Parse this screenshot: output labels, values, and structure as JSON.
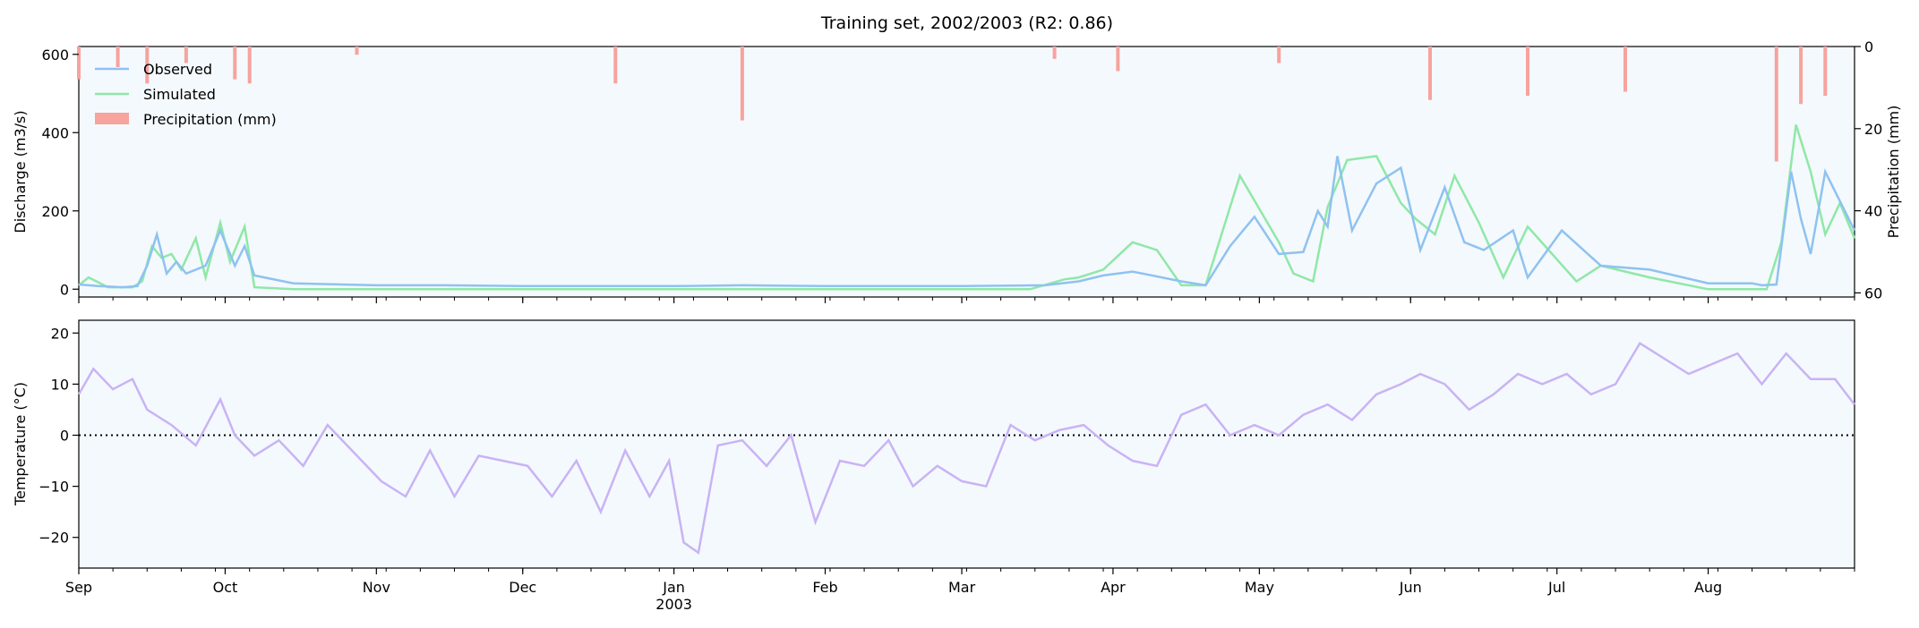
{
  "chart_data": [
    {
      "type": "line",
      "title": "Training set, 2002/2003 (R2: 0.86)",
      "ylabel": "Discharge (m3/s)",
      "y2label": "Precipitation (mm)",
      "ylim": [
        -20,
        620
      ],
      "y2lim": [
        0,
        61
      ],
      "y2_inverted": true,
      "yticks": [
        0,
        200,
        400,
        600
      ],
      "y2ticks": [
        0,
        20,
        40,
        60
      ],
      "legend_placement": "top-left",
      "grid": false,
      "colors": {
        "observed": "#8fc2f0",
        "simulated": "#8fe8a6",
        "precip": "#f7a39e",
        "background": "#f4f9fd"
      },
      "series": [
        {
          "name": "Observed",
          "x": [
            "2002-09-01",
            "2002-09-05",
            "2002-09-10",
            "2002-09-13",
            "2002-09-15",
            "2002-09-17",
            "2002-09-19",
            "2002-09-21",
            "2002-09-23",
            "2002-09-27",
            "2002-09-30",
            "2002-10-03",
            "2002-10-05",
            "2002-10-07",
            "2002-10-15",
            "2002-11-01",
            "2002-11-15",
            "2002-12-01",
            "2002-12-15",
            "2003-01-01",
            "2003-01-15",
            "2003-02-01",
            "2003-02-15",
            "2003-03-01",
            "2003-03-18",
            "2003-03-25",
            "2003-03-30",
            "2003-04-05",
            "2003-04-15",
            "2003-04-20",
            "2003-04-25",
            "2003-04-30",
            "2003-05-05",
            "2003-05-10",
            "2003-05-13",
            "2003-05-15",
            "2003-05-17",
            "2003-05-20",
            "2003-05-25",
            "2003-05-30",
            "2003-06-03",
            "2003-06-08",
            "2003-06-12",
            "2003-06-16",
            "2003-06-22",
            "2003-06-25",
            "2003-07-02",
            "2003-07-10",
            "2003-07-20",
            "2003-08-01",
            "2003-08-10",
            "2003-08-12",
            "2003-08-15",
            "2003-08-18",
            "2003-08-20",
            "2003-08-22",
            "2003-08-25",
            "2003-08-31"
          ],
          "values": [
            12,
            8,
            5,
            8,
            60,
            140,
            40,
            70,
            40,
            60,
            150,
            60,
            110,
            35,
            15,
            10,
            10,
            8,
            8,
            8,
            10,
            8,
            8,
            8,
            10,
            20,
            35,
            45,
            20,
            10,
            110,
            185,
            90,
            95,
            200,
            160,
            340,
            150,
            270,
            310,
            100,
            260,
            120,
            100,
            150,
            30,
            150,
            60,
            50,
            15,
            15,
            10,
            12,
            300,
            180,
            90,
            300,
            150
          ]
        },
        {
          "name": "Simulated",
          "x": [
            "2002-09-01",
            "2002-09-03",
            "2002-09-07",
            "2002-09-12",
            "2002-09-14",
            "2002-09-16",
            "2002-09-18",
            "2002-09-20",
            "2002-09-22",
            "2002-09-25",
            "2002-09-27",
            "2002-09-30",
            "2002-10-02",
            "2002-10-05",
            "2002-10-07",
            "2002-10-15",
            "2002-11-15",
            "2003-01-01",
            "2003-02-15",
            "2003-03-15",
            "2003-03-22",
            "2003-03-25",
            "2003-03-30",
            "2003-04-05",
            "2003-04-10",
            "2003-04-15",
            "2003-04-20",
            "2003-04-27",
            "2003-05-05",
            "2003-05-08",
            "2003-05-12",
            "2003-05-15",
            "2003-05-19",
            "2003-05-25",
            "2003-05-30",
            "2003-06-02",
            "2003-06-06",
            "2003-06-10",
            "2003-06-15",
            "2003-06-20",
            "2003-06-25",
            "2003-07-05",
            "2003-07-10",
            "2003-07-20",
            "2003-08-01",
            "2003-08-10",
            "2003-08-13",
            "2003-08-16",
            "2003-08-19",
            "2003-08-22",
            "2003-08-25",
            "2003-08-28",
            "2003-08-31"
          ],
          "values": [
            10,
            30,
            5,
            5,
            20,
            110,
            80,
            90,
            50,
            130,
            30,
            170,
            70,
            160,
            5,
            0,
            0,
            0,
            0,
            0,
            25,
            30,
            50,
            120,
            100,
            10,
            10,
            290,
            120,
            40,
            20,
            210,
            330,
            340,
            220,
            180,
            140,
            290,
            170,
            30,
            160,
            20,
            60,
            30,
            0,
            0,
            0,
            120,
            420,
            300,
            140,
            220,
            130
          ]
        }
      ],
      "precip_markers": [
        {
          "x": "2002-09-01",
          "value": 8
        },
        {
          "x": "2002-09-09",
          "value": 5
        },
        {
          "x": "2002-09-15",
          "value": 9
        },
        {
          "x": "2002-09-23",
          "value": 4
        },
        {
          "x": "2002-10-03",
          "value": 8
        },
        {
          "x": "2002-10-06",
          "value": 9
        },
        {
          "x": "2002-10-28",
          "value": 2
        },
        {
          "x": "2002-12-20",
          "value": 9
        },
        {
          "x": "2003-01-15",
          "value": 18
        },
        {
          "x": "2003-03-20",
          "value": 3
        },
        {
          "x": "2003-04-02",
          "value": 6
        },
        {
          "x": "2003-05-05",
          "value": 4
        },
        {
          "x": "2003-06-05",
          "value": 13
        },
        {
          "x": "2003-06-25",
          "value": 12
        },
        {
          "x": "2003-07-15",
          "value": 11
        },
        {
          "x": "2003-08-15",
          "value": 28
        },
        {
          "x": "2003-08-20",
          "value": 14
        },
        {
          "x": "2003-08-25",
          "value": 12
        }
      ],
      "legend": [
        {
          "label": "Observed",
          "kind": "line"
        },
        {
          "label": "Simulated",
          "kind": "line"
        },
        {
          "label": "Precipitation (mm)",
          "kind": "bar"
        }
      ]
    },
    {
      "type": "line",
      "ylabel": "Temperature (°C)",
      "ylim": [
        -26,
        22.5
      ],
      "yticks": [
        -20,
        -10,
        0,
        10,
        20
      ],
      "reference_line": {
        "y": 0,
        "style": "dotted"
      },
      "colors": {
        "temperature": "#c9b3f5",
        "background": "#f4f9fd"
      },
      "series": [
        {
          "name": "",
          "x": [
            "2002-09-01",
            "2002-09-04",
            "2002-09-08",
            "2002-09-12",
            "2002-09-15",
            "2002-09-20",
            "2002-09-25",
            "2002-09-30",
            "2002-10-03",
            "2002-10-07",
            "2002-10-12",
            "2002-10-17",
            "2002-10-22",
            "2002-10-27",
            "2002-11-02",
            "2002-11-07",
            "2002-11-12",
            "2002-11-17",
            "2002-11-22",
            "2002-11-27",
            "2002-12-02",
            "2002-12-07",
            "2002-12-12",
            "2002-12-17",
            "2002-12-22",
            "2002-12-27",
            "2002-12-31",
            "2003-01-03",
            "2003-01-06",
            "2003-01-10",
            "2003-01-15",
            "2003-01-20",
            "2003-01-25",
            "2003-01-30",
            "2003-02-04",
            "2003-02-09",
            "2003-02-14",
            "2003-02-19",
            "2003-02-24",
            "2003-03-01",
            "2003-03-06",
            "2003-03-11",
            "2003-03-16",
            "2003-03-21",
            "2003-03-26",
            "2003-03-31",
            "2003-04-05",
            "2003-04-10",
            "2003-04-15",
            "2003-04-20",
            "2003-04-25",
            "2003-04-30",
            "2003-05-05",
            "2003-05-10",
            "2003-05-15",
            "2003-05-20",
            "2003-05-25",
            "2003-05-30",
            "2003-06-03",
            "2003-06-08",
            "2003-06-13",
            "2003-06-18",
            "2003-06-23",
            "2003-06-28",
            "2003-07-03",
            "2003-07-08",
            "2003-07-13",
            "2003-07-18",
            "2003-07-23",
            "2003-07-28",
            "2003-08-02",
            "2003-08-07",
            "2003-08-12",
            "2003-08-17",
            "2003-08-22",
            "2003-08-27",
            "2003-08-31"
          ],
          "values": [
            8,
            13,
            9,
            11,
            5,
            2,
            -2,
            7,
            0,
            -4,
            -1,
            -6,
            2,
            -3,
            -9,
            -12,
            -3,
            -12,
            -4,
            -5,
            -6,
            -12,
            -5,
            -15,
            -3,
            -12,
            -5,
            -21,
            -23,
            -2,
            -1,
            -6,
            0,
            -17,
            -5,
            -6,
            -1,
            -10,
            -6,
            -9,
            -10,
            2,
            -1,
            1,
            2,
            -2,
            -5,
            -6,
            4,
            6,
            0,
            2,
            0,
            4,
            6,
            3,
            8,
            10,
            12,
            10,
            5,
            8,
            12,
            10,
            12,
            8,
            10,
            18,
            15,
            12,
            14,
            16,
            10,
            16,
            11,
            11,
            6
          ]
        }
      ]
    }
  ],
  "x_axis": {
    "start": "2002-09-01",
    "end": "2003-08-31",
    "ticks": [
      {
        "date": "2002-09-01",
        "label": "Sep"
      },
      {
        "date": "2002-10-01",
        "label": "Oct"
      },
      {
        "date": "2002-11-01",
        "label": "Nov"
      },
      {
        "date": "2002-12-01",
        "label": "Dec"
      },
      {
        "date": "2003-01-01",
        "label": "Jan",
        "sublabel": "2003"
      },
      {
        "date": "2003-02-01",
        "label": "Feb"
      },
      {
        "date": "2003-03-01",
        "label": "Mar"
      },
      {
        "date": "2003-04-01",
        "label": "Apr"
      },
      {
        "date": "2003-05-01",
        "label": "May"
      },
      {
        "date": "2003-06-01",
        "label": "Jun"
      },
      {
        "date": "2003-07-01",
        "label": "Jul"
      },
      {
        "date": "2003-08-01",
        "label": "Aug"
      }
    ]
  }
}
